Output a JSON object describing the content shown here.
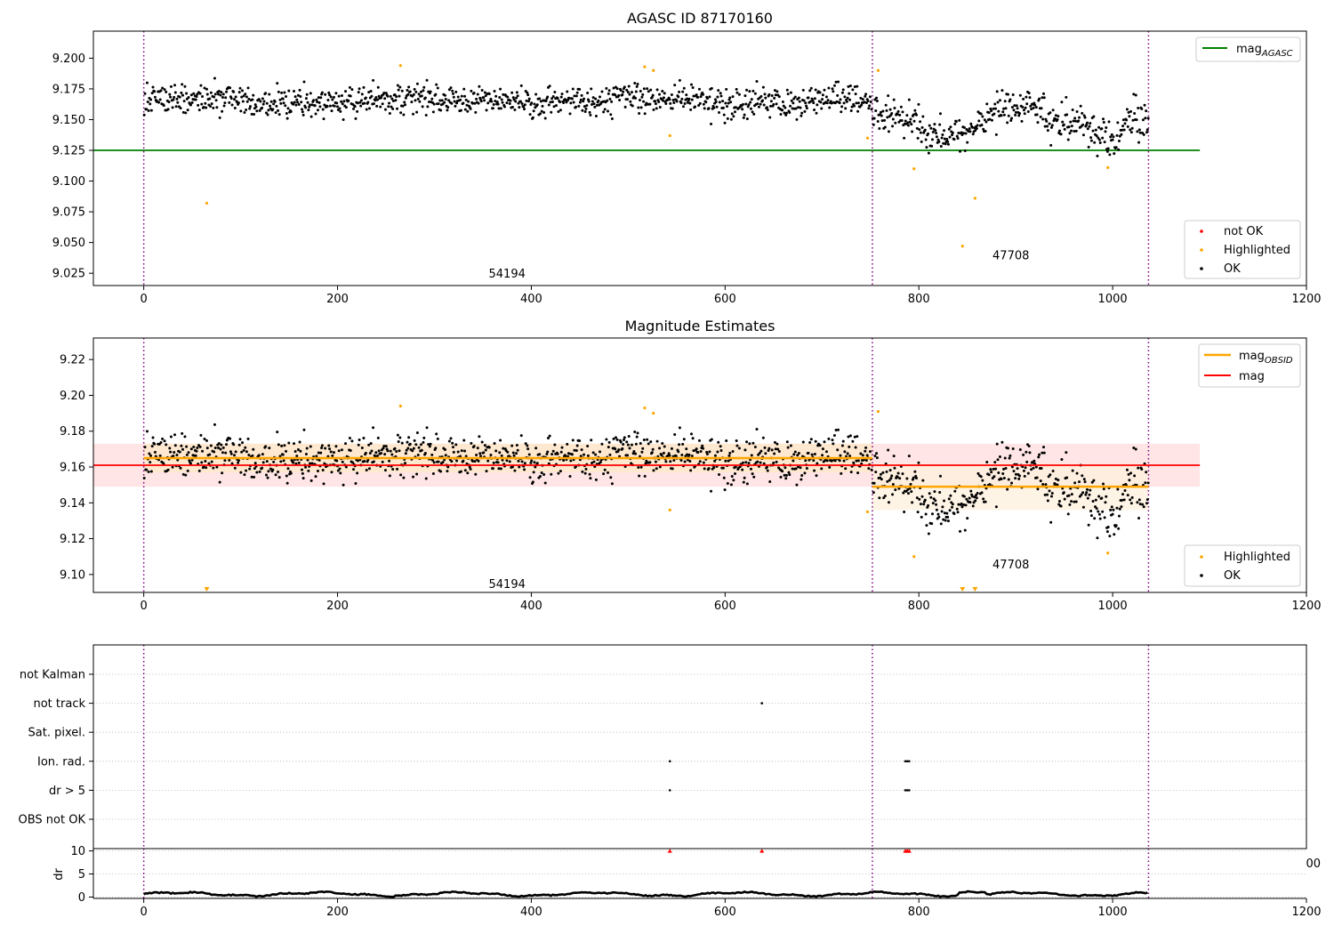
{
  "chart_data": [
    {
      "panel": "top",
      "type": "scatter",
      "title": "AGASC ID 87170160",
      "xlim": [
        -52,
        1200
      ],
      "ylim": [
        9.015,
        9.222
      ],
      "xticks": [
        0,
        200,
        400,
        600,
        800,
        1000,
        1200
      ],
      "yticks": [
        9.025,
        9.05,
        9.075,
        9.1,
        9.125,
        9.15,
        9.175,
        9.2
      ],
      "ytick_labels": [
        "9.025",
        "9.050",
        "9.075",
        "9.100",
        "9.125",
        "9.150",
        "9.175",
        "9.200"
      ],
      "obs_boundaries": [
        0,
        752,
        1037
      ],
      "lines": [
        {
          "name": "mag",
          "sub": "AGASC",
          "color": "#008000",
          "x0": -52,
          "x1": 1090,
          "y": 9.125
        }
      ],
      "highlighted": {
        "color": "#ffa500",
        "points": [
          [
            65,
            9.082
          ],
          [
            265,
            9.194
          ],
          [
            517,
            9.193
          ],
          [
            526,
            9.19
          ],
          [
            543,
            9.137
          ],
          [
            747,
            9.135
          ],
          [
            758,
            9.19
          ],
          [
            795,
            9.11
          ],
          [
            845,
            9.047
          ],
          [
            858,
            9.086
          ],
          [
            995,
            9.111
          ]
        ]
      },
      "segments": [
        {
          "x0": 0,
          "x1": 752,
          "center": 9.165,
          "spread": 0.011
        },
        {
          "x0": 752,
          "x1": 1037,
          "center": 9.149,
          "spread": 0.013
        }
      ],
      "annotations": [
        {
          "text": "54194",
          "x": 375,
          "y": 9.025
        },
        {
          "text": "47708",
          "x": 895,
          "y": 9.04
        }
      ],
      "legends": [
        {
          "position": "top-right",
          "entries": [
            {
              "kind": "line",
              "label": "mag",
              "sub": "AGASC",
              "color": "#008000"
            }
          ]
        },
        {
          "position": "bottom-right",
          "entries": [
            {
              "kind": "dot",
              "label": "not OK",
              "color": "#ff0000"
            },
            {
              "kind": "dot",
              "label": "Highlighted",
              "color": "#ffa500"
            },
            {
              "kind": "dot",
              "label": "OK",
              "color": "#000000"
            }
          ]
        }
      ]
    },
    {
      "panel": "middle",
      "type": "scatter",
      "title": "Magnitude Estimates",
      "xlim": [
        -52,
        1200
      ],
      "ylim": [
        9.09,
        9.232
      ],
      "xticks": [
        0,
        200,
        400,
        600,
        800,
        1000,
        1200
      ],
      "yticks": [
        9.1,
        9.12,
        9.14,
        9.16,
        9.18,
        9.2,
        9.22
      ],
      "ytick_labels": [
        "9.10",
        "9.12",
        "9.14",
        "9.16",
        "9.18",
        "9.20",
        "9.22"
      ],
      "obs_boundaries": [
        0,
        752,
        1037
      ],
      "bands": [
        {
          "x0": -52,
          "x1": 1090,
          "y0": 9.149,
          "y1": 9.173,
          "color": "#ffdcdc"
        },
        {
          "x0": 0,
          "x1": 752,
          "y0": 9.157,
          "y1": 9.173,
          "color": "#fde8c8"
        },
        {
          "x0": 752,
          "x1": 1037,
          "y0": 9.136,
          "y1": 9.162,
          "color": "#fdf0dc"
        }
      ],
      "lines": [
        {
          "name": "mag",
          "color": "#ff0000",
          "x0": -52,
          "x1": 1090,
          "y": 9.161
        },
        {
          "name": "mag",
          "sub": "OBSID",
          "color": "#ffa500",
          "x0": 0,
          "x1": 752,
          "y": 9.165
        },
        {
          "name": "mag",
          "sub": "OBSID",
          "color": "#ffa500",
          "x0": 752,
          "x1": 1037,
          "y": 9.149
        }
      ],
      "highlighted": {
        "color": "#ffa500",
        "points": [
          [
            265,
            9.194
          ],
          [
            517,
            9.193
          ],
          [
            526,
            9.19
          ],
          [
            543,
            9.136
          ],
          [
            747,
            9.135
          ],
          [
            758,
            9.191
          ],
          [
            795,
            9.11
          ],
          [
            995,
            9.112
          ]
        ]
      },
      "offscale_markers": [
        65,
        845,
        858
      ],
      "segments": [
        {
          "x0": 0,
          "x1": 752,
          "center": 9.165,
          "spread": 0.011
        },
        {
          "x0": 752,
          "x1": 1037,
          "center": 9.149,
          "spread": 0.013
        }
      ],
      "annotations": [
        {
          "text": "54194",
          "x": 375,
          "y": 9.095
        },
        {
          "text": "47708",
          "x": 895,
          "y": 9.106
        }
      ],
      "legends": [
        {
          "position": "top-right",
          "entries": [
            {
              "kind": "line",
              "label": "mag",
              "sub": "OBSID",
              "color": "#ffa500"
            },
            {
              "kind": "line",
              "label": "mag",
              "sub": "",
              "color": "#ff0000"
            }
          ]
        },
        {
          "position": "bottom-right",
          "entries": [
            {
              "kind": "dot",
              "label": "Highlighted",
              "color": "#ffa500"
            },
            {
              "kind": "dot",
              "label": "OK",
              "color": "#000000"
            }
          ]
        }
      ]
    },
    {
      "panel": "flags",
      "type": "scatter",
      "xlim": [
        -52,
        1200
      ],
      "categories": [
        "not Kalman",
        "not track",
        "Sat. pixel.",
        "Ion. rad.",
        "dr > 5",
        "OBS not OK"
      ],
      "obs_boundaries": [
        0,
        752,
        1037
      ],
      "flag_points": [
        {
          "category": "not track",
          "x": 638
        },
        {
          "category": "Ion. rad.",
          "x": 543
        },
        {
          "category": "Ion. rad.",
          "x": 786
        },
        {
          "category": "Ion. rad.",
          "x": 788
        },
        {
          "category": "Ion. rad.",
          "x": 790
        },
        {
          "category": "dr > 5",
          "x": 543
        },
        {
          "category": "dr > 5",
          "x": 786
        },
        {
          "category": "dr > 5",
          "x": 788
        },
        {
          "category": "dr > 5",
          "x": 790
        }
      ],
      "clipped_tick_label": "00"
    },
    {
      "panel": "dr",
      "type": "line",
      "ylabel": "dr",
      "xlim": [
        -52,
        1200
      ],
      "ylim": [
        -0.3,
        10.5
      ],
      "xticks": [
        0,
        200,
        400,
        600,
        800,
        1000,
        1200
      ],
      "yticks": [
        0,
        5,
        10
      ],
      "obs_boundaries": [
        0,
        752,
        1037
      ],
      "hline_y": 10,
      "outliers": {
        "color": "#ff0000",
        "x": [
          543,
          638,
          786,
          788,
          790
        ]
      }
    }
  ]
}
